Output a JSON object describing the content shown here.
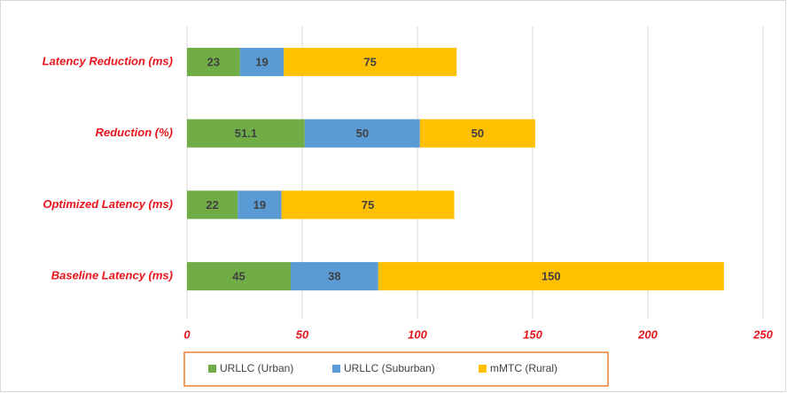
{
  "chart_data": {
    "type": "stacked-barh",
    "categories": [
      "Latency Reduction (ms)",
      "Reduction (%)",
      "Optimized Latency (ms)",
      "Baseline Latency (ms)"
    ],
    "series": [
      {
        "name": "URLLC (Urban)",
        "color": "#70ad47",
        "values": [
          23,
          51.1,
          22,
          45
        ]
      },
      {
        "name": "URLLC (Suburban)",
        "color": "#5b9bd5",
        "values": [
          19,
          50,
          19,
          38
        ]
      },
      {
        "name": "mMTC (Rural)",
        "color": "#ffc000",
        "values": [
          75,
          50,
          75,
          150
        ]
      }
    ],
    "xlim": [
      0,
      250
    ],
    "xticks": [
      0,
      50,
      100,
      150,
      200,
      250
    ],
    "grid": true,
    "legend": "bottom"
  }
}
